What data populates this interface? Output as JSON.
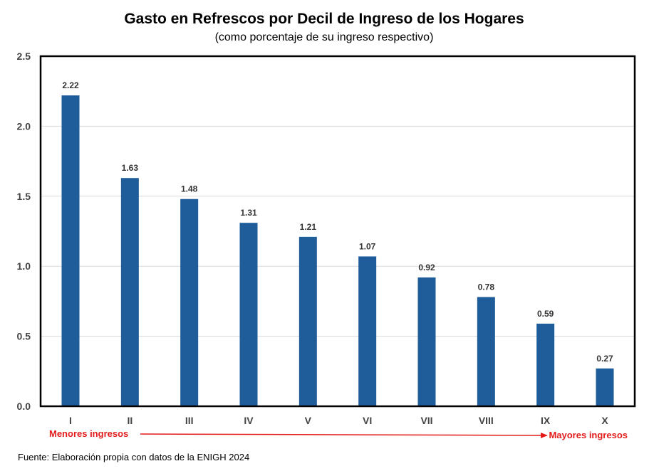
{
  "chart_data": {
    "type": "bar",
    "title": "Gasto en Refrescos por Decil de Ingreso de los Hogares",
    "subtitle": "(como porcentaje de su ingreso respectivo)",
    "categories": [
      "I",
      "II",
      "III",
      "IV",
      "V",
      "VI",
      "VII",
      "VIII",
      "IX",
      "X"
    ],
    "values": [
      2.22,
      1.63,
      1.48,
      1.31,
      1.21,
      1.07,
      0.92,
      0.78,
      0.59,
      0.27
    ],
    "data_labels": [
      "2.22",
      "1.63",
      "1.48",
      "1.31",
      "1.21",
      "1.07",
      "0.92",
      "0.78",
      "0.59",
      "0.27"
    ],
    "ylim": [
      0,
      2.5
    ],
    "yticks": [
      0,
      0.5,
      1.0,
      1.5,
      2.0,
      2.5
    ],
    "ytick_labels": [
      "0.0",
      "0.5",
      "1.0",
      "1.5",
      "2.0",
      "2.5"
    ],
    "xlabel": "",
    "ylabel": "",
    "grid": true,
    "annotations": {
      "left": "Menores ingresos",
      "right": "Mayores ingresos"
    },
    "source": "Fuente: Elaboración propia con datos de la ENIGH 2024"
  },
  "colors": {
    "bar": "#1f5c9a",
    "annotation": "#e31b1b",
    "arrow": "#e31b1b",
    "grid": "#d9d9d9",
    "frame": "#000000"
  }
}
